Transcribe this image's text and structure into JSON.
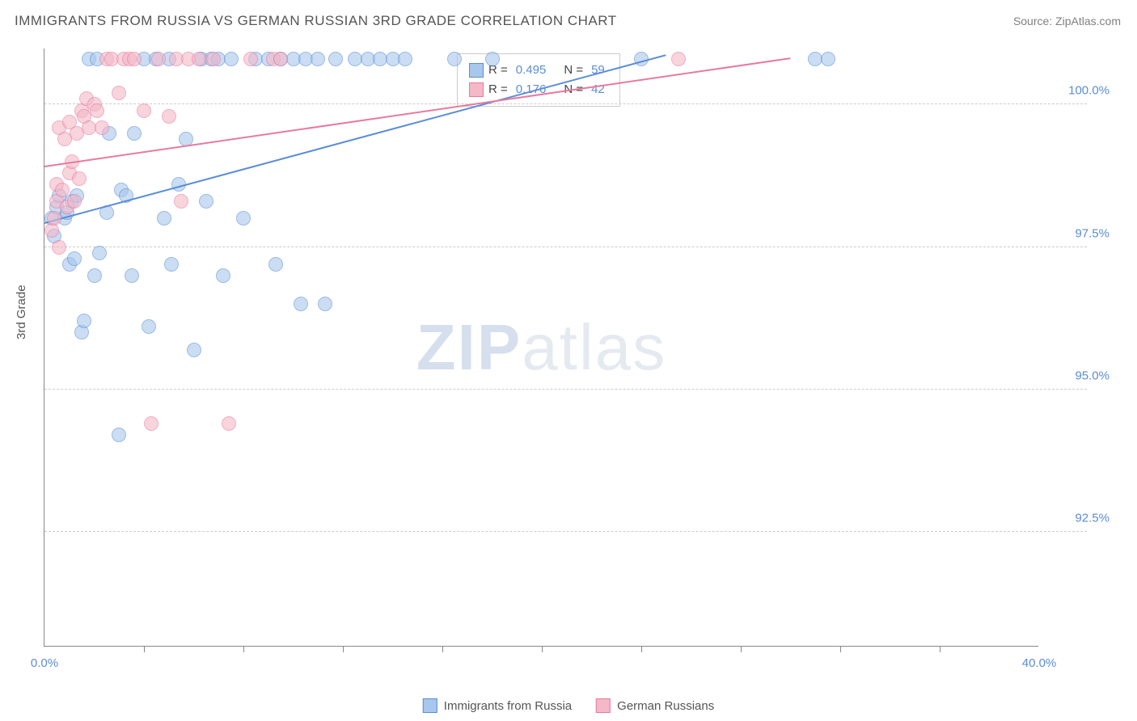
{
  "title": "IMMIGRANTS FROM RUSSIA VS GERMAN RUSSIAN 3RD GRADE CORRELATION CHART",
  "source": "Source: ZipAtlas.com",
  "y_axis_label": "3rd Grade",
  "watermark_zip": "ZIP",
  "watermark_atlas": "atlas",
  "chart": {
    "type": "scatter",
    "xlim": [
      0,
      40
    ],
    "ylim": [
      90.5,
      101
    ],
    "x_ticks": [
      0.0,
      40.0
    ],
    "x_tick_labels": [
      "0.0%",
      "40.0%"
    ],
    "x_minor_ticks": [
      4,
      8,
      12,
      16,
      20,
      24,
      28,
      32,
      36
    ],
    "y_ticks": [
      92.5,
      95.0,
      97.5,
      100.0
    ],
    "y_tick_labels": [
      "92.5%",
      "95.0%",
      "97.5%",
      "100.0%"
    ],
    "background_color": "#ffffff",
    "grid_color": "#cccccc",
    "axis_color": "#888888",
    "tick_label_color": "#5b8dd6",
    "marker_size": 18,
    "marker_opacity": 0.6,
    "series": [
      {
        "name": "Immigrants from Russia",
        "color_fill": "#a7c7ec",
        "color_stroke": "#5b8dd6",
        "r_label": "R =",
        "r_value": "0.495",
        "n_label": "N =",
        "n_value": "59",
        "trend": {
          "x1": 0,
          "y1": 97.9,
          "x2": 25,
          "y2": 100.85
        },
        "points": [
          [
            0.3,
            98.0
          ],
          [
            0.4,
            97.7
          ],
          [
            0.5,
            98.2
          ],
          [
            0.6,
            98.4
          ],
          [
            0.8,
            98.0
          ],
          [
            0.9,
            98.1
          ],
          [
            1.0,
            97.2
          ],
          [
            1.1,
            98.3
          ],
          [
            1.2,
            97.3
          ],
          [
            1.3,
            98.4
          ],
          [
            1.5,
            96.0
          ],
          [
            1.6,
            96.2
          ],
          [
            1.8,
            100.8
          ],
          [
            2.0,
            97.0
          ],
          [
            2.1,
            100.8
          ],
          [
            2.2,
            97.4
          ],
          [
            2.5,
            98.1
          ],
          [
            2.6,
            99.5
          ],
          [
            3.0,
            94.2
          ],
          [
            3.1,
            98.5
          ],
          [
            3.3,
            98.4
          ],
          [
            3.5,
            97.0
          ],
          [
            3.6,
            99.5
          ],
          [
            4.0,
            100.8
          ],
          [
            4.2,
            96.1
          ],
          [
            4.5,
            100.8
          ],
          [
            4.8,
            98.0
          ],
          [
            5.0,
            100.8
          ],
          [
            5.1,
            97.2
          ],
          [
            5.4,
            98.6
          ],
          [
            5.7,
            99.4
          ],
          [
            6.0,
            95.7
          ],
          [
            6.3,
            100.8
          ],
          [
            6.5,
            98.3
          ],
          [
            6.7,
            100.8
          ],
          [
            7.0,
            100.8
          ],
          [
            7.2,
            97.0
          ],
          [
            7.5,
            100.8
          ],
          [
            8.0,
            98.0
          ],
          [
            8.5,
            100.8
          ],
          [
            9.0,
            100.8
          ],
          [
            9.3,
            97.2
          ],
          [
            9.5,
            100.8
          ],
          [
            10.0,
            100.8
          ],
          [
            10.3,
            96.5
          ],
          [
            10.5,
            100.8
          ],
          [
            11.0,
            100.8
          ],
          [
            11.3,
            96.5
          ],
          [
            11.7,
            100.8
          ],
          [
            12.5,
            100.8
          ],
          [
            13.0,
            100.8
          ],
          [
            13.5,
            100.8
          ],
          [
            14.0,
            100.8
          ],
          [
            14.5,
            100.8
          ],
          [
            16.5,
            100.8
          ],
          [
            18.0,
            100.8
          ],
          [
            24.0,
            100.8
          ],
          [
            31.0,
            100.8
          ],
          [
            31.5,
            100.8
          ]
        ]
      },
      {
        "name": "German Russians",
        "color_fill": "#f4b8c8",
        "color_stroke": "#e77aa0",
        "r_label": "R =",
        "r_value": "0.176",
        "n_label": "N =",
        "n_value": "42",
        "trend": {
          "x1": 0,
          "y1": 98.9,
          "x2": 30,
          "y2": 100.8
        },
        "points": [
          [
            0.3,
            97.8
          ],
          [
            0.4,
            98.0
          ],
          [
            0.5,
            98.3
          ],
          [
            0.5,
            98.6
          ],
          [
            0.6,
            99.6
          ],
          [
            0.6,
            97.5
          ],
          [
            0.7,
            98.5
          ],
          [
            0.8,
            99.4
          ],
          [
            0.9,
            98.2
          ],
          [
            1.0,
            98.8
          ],
          [
            1.0,
            99.7
          ],
          [
            1.1,
            99.0
          ],
          [
            1.2,
            98.3
          ],
          [
            1.3,
            99.5
          ],
          [
            1.4,
            98.7
          ],
          [
            1.5,
            99.9
          ],
          [
            1.6,
            99.8
          ],
          [
            1.7,
            100.1
          ],
          [
            1.8,
            99.6
          ],
          [
            2.0,
            100.0
          ],
          [
            2.1,
            99.9
          ],
          [
            2.3,
            99.6
          ],
          [
            2.5,
            100.8
          ],
          [
            2.7,
            100.8
          ],
          [
            3.0,
            100.2
          ],
          [
            3.2,
            100.8
          ],
          [
            3.4,
            100.8
          ],
          [
            3.6,
            100.8
          ],
          [
            4.0,
            99.9
          ],
          [
            4.3,
            94.4
          ],
          [
            4.6,
            100.8
          ],
          [
            5.0,
            99.8
          ],
          [
            5.3,
            100.8
          ],
          [
            5.5,
            98.3
          ],
          [
            5.8,
            100.8
          ],
          [
            6.2,
            100.8
          ],
          [
            6.8,
            100.8
          ],
          [
            7.4,
            94.4
          ],
          [
            8.3,
            100.8
          ],
          [
            9.2,
            100.8
          ],
          [
            9.5,
            100.8
          ],
          [
            25.5,
            100.8
          ]
        ]
      }
    ]
  },
  "bottom_legend": [
    {
      "label": "Immigrants from Russia",
      "fill": "#a7c7ec",
      "stroke": "#5b8dd6"
    },
    {
      "label": "German Russians",
      "fill": "#f4b8c8",
      "stroke": "#e77aa0"
    }
  ]
}
